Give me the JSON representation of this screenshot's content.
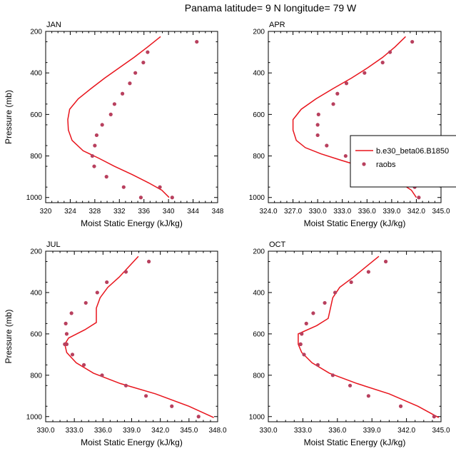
{
  "figure": {
    "title": "Panama  latitude= 9 N longitude= 79 W"
  },
  "colors": {
    "model": "#e8141c",
    "obs": "#b8405e",
    "axis": "#000000"
  },
  "chart_data": [
    {
      "type": "line",
      "panel_title": "JAN",
      "xlabel": "Moist Static Energy (kJ/kg)",
      "ylabel": "Pressure (mb)",
      "xlim": [
        320,
        348
      ],
      "ylim": [
        200,
        1025
      ],
      "y_reversed": true,
      "xticks": [
        320,
        324,
        328,
        332,
        336,
        340,
        344,
        348
      ],
      "xtick_labels": [
        "320",
        "324",
        "328",
        "332",
        "336",
        "340",
        "344",
        "348"
      ],
      "yticks": [
        200,
        400,
        600,
        800,
        1000
      ],
      "ytick_labels": [
        "200",
        "400",
        "600",
        "800",
        "1000"
      ],
      "show_legend": false,
      "series": [
        {
          "name": "b.e30_beta06.B1850",
          "x": [
            338.7,
            336.6,
            334.4,
            332.0,
            329.6,
            327.4,
            325.3,
            323.9,
            323.6,
            323.7,
            324.3,
            326.1,
            328.6,
            331.2,
            334.1,
            336.8,
            338.9,
            340.1
          ],
          "y": [
            225,
            275,
            325,
            375,
            425,
            475,
            525,
            575,
            625,
            675,
            725,
            775,
            810,
            850,
            890,
            930,
            965,
            1000
          ]
        },
        {
          "name": "raobs",
          "x": [
            344.6,
            336.6,
            335.9,
            334.6,
            333.7,
            332.5,
            331.2,
            330.6,
            329.2,
            328.3,
            328.0,
            327.6,
            327.9,
            329.9,
            332.7,
            335.5,
            338.6,
            340.6
          ],
          "y": [
            250,
            300,
            350,
            400,
            450,
            500,
            550,
            600,
            650,
            700,
            750,
            800,
            850,
            900,
            950,
            1000,
            950,
            1000
          ]
        }
      ]
    },
    {
      "type": "line",
      "panel_title": "APR",
      "xlabel": "Moist Static Energy (kJ/kg)",
      "ylabel": "Pressure (mb)",
      "xlim": [
        324,
        345
      ],
      "ylim": [
        200,
        1025
      ],
      "y_reversed": true,
      "xticks": [
        324,
        327,
        330,
        333,
        336,
        339,
        342,
        345
      ],
      "xtick_labels": [
        "324.0",
        "327.0",
        "330.0",
        "333.0",
        "336.0",
        "339.0",
        "342.0",
        "345.0"
      ],
      "yticks": [
        200,
        400,
        600,
        800,
        1000
      ],
      "ytick_labels": [
        "200",
        "400",
        "600",
        "800",
        "1000"
      ],
      "show_legend": true,
      "legend_location": "right",
      "series": [
        {
          "name": "b.e30_beta06.B1850",
          "x": [
            340.7,
            339.4,
            337.9,
            336.1,
            334.1,
            331.9,
            329.8,
            328.0,
            327.0,
            327.0,
            327.4,
            328.5,
            330.4,
            332.8,
            335.3,
            337.6,
            339.7,
            341.4,
            342.0
          ],
          "y": [
            225,
            275,
            325,
            375,
            425,
            475,
            525,
            575,
            625,
            675,
            725,
            760,
            790,
            820,
            850,
            880,
            920,
            965,
            1000
          ]
        },
        {
          "name": "raobs",
          "x": [
            341.5,
            338.8,
            337.9,
            335.7,
            333.5,
            332.4,
            331.9,
            330.1,
            330.0,
            330.0,
            331.1,
            333.4,
            334.7,
            338.2,
            341.8,
            342.3
          ],
          "y": [
            250,
            300,
            350,
            400,
            450,
            500,
            550,
            600,
            650,
            700,
            750,
            800,
            850,
            900,
            950,
            1000
          ]
        }
      ]
    },
    {
      "type": "line",
      "panel_title": "JUL",
      "xlabel": "Moist Static Energy (kJ/kg)",
      "ylabel": "Pressure (mb)",
      "xlim": [
        330,
        348
      ],
      "ylim": [
        200,
        1025
      ],
      "y_reversed": true,
      "xticks": [
        330,
        333,
        336,
        339,
        342,
        345,
        348
      ],
      "xtick_labels": [
        "330.0",
        "333.0",
        "336.0",
        "339.0",
        "342.0",
        "345.0",
        "348.0"
      ],
      "yticks": [
        200,
        400,
        600,
        800,
        1000
      ],
      "ytick_labels": [
        "200",
        "400",
        "600",
        "800",
        "1000"
      ],
      "show_legend": false,
      "series": [
        {
          "name": "b.e30_beta06.B1850",
          "x": [
            339.7,
            338.7,
            337.7,
            336.5,
            335.7,
            335.3,
            335.3,
            335.3,
            334.1,
            332.4,
            332.0,
            332.2,
            333.2,
            335.0,
            337.8,
            341.5,
            345.0,
            347.6
          ],
          "y": [
            225,
            275,
            325,
            375,
            425,
            475,
            525,
            545,
            580,
            620,
            650,
            690,
            740,
            790,
            840,
            890,
            950,
            1005
          ]
        },
        {
          "name": "raobs",
          "x": [
            340.8,
            338.4,
            336.4,
            335.4,
            334.2,
            332.7,
            332.1,
            332.2,
            332.0,
            332.2,
            332.8,
            334.0,
            335.9,
            338.4,
            340.5,
            343.2,
            346.0
          ],
          "y": [
            250,
            300,
            350,
            400,
            450,
            500,
            550,
            600,
            650,
            650,
            700,
            750,
            800,
            850,
            900,
            950,
            1000
          ]
        }
      ]
    },
    {
      "type": "line",
      "panel_title": "OCT",
      "xlabel": "Moist Static Energy (kJ/kg)",
      "ylabel": "Pressure (mb)",
      "xlim": [
        330,
        345
      ],
      "ylim": [
        200,
        1025
      ],
      "y_reversed": true,
      "xticks": [
        330,
        333,
        336,
        339,
        342,
        345
      ],
      "xtick_labels": [
        "330.0",
        "333.0",
        "336.0",
        "339.0",
        "342.0",
        "345.0"
      ],
      "yticks": [
        200,
        400,
        600,
        800,
        1000
      ],
      "ytick_labels": [
        "200",
        "400",
        "600",
        "800",
        "1000"
      ],
      "show_legend": false,
      "series": [
        {
          "name": "b.e30_beta06.B1850",
          "x": [
            339.6,
            338.5,
            337.4,
            336.2,
            335.6,
            335.4,
            335.2,
            334.2,
            332.6,
            332.6,
            332.9,
            333.8,
            335.3,
            337.7,
            340.5,
            343.0,
            344.8
          ],
          "y": [
            225,
            275,
            325,
            375,
            425,
            475,
            525,
            560,
            600,
            650,
            690,
            740,
            790,
            840,
            890,
            950,
            1005
          ]
        },
        {
          "name": "raobs",
          "x": [
            340.2,
            338.7,
            337.2,
            335.8,
            334.9,
            333.9,
            333.3,
            332.9,
            332.8,
            332.8,
            333.1,
            334.3,
            335.6,
            337.1,
            338.7,
            341.5,
            344.4
          ],
          "y": [
            250,
            300,
            350,
            400,
            450,
            500,
            550,
            600,
            650,
            650,
            700,
            750,
            800,
            850,
            900,
            950,
            1000
          ]
        }
      ]
    }
  ]
}
